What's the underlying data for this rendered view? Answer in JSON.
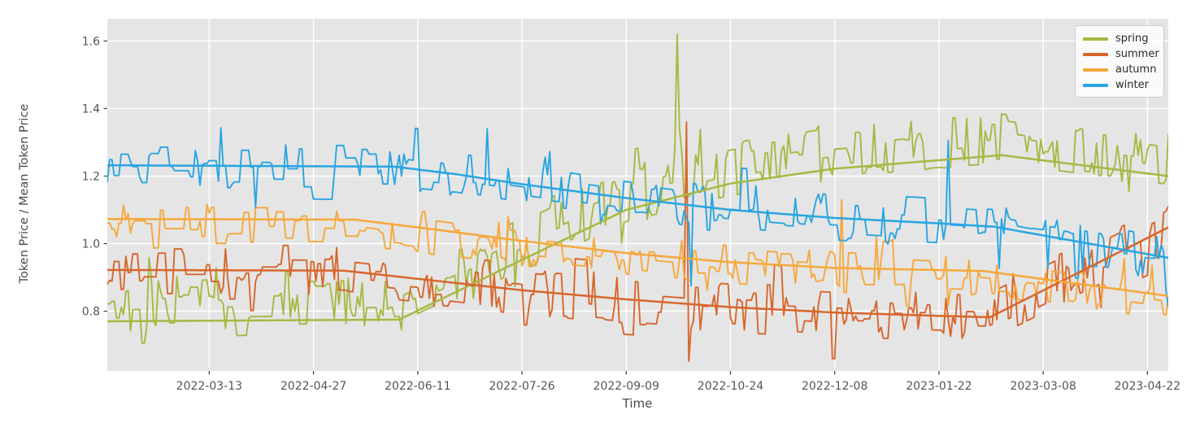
{
  "chart_data": {
    "type": "line",
    "title": "",
    "xlabel": "Time",
    "ylabel": "Token Price / Mean Token Price",
    "x_range": [
      "2022-01-28",
      "2023-05-01"
    ],
    "y_range": [
      0.623,
      1.666
    ],
    "x_ticks": [
      "2022-03-13",
      "2022-04-27",
      "2022-06-11",
      "2022-07-26",
      "2022-09-09",
      "2022-10-24",
      "2022-12-08",
      "2023-01-22",
      "2023-03-08",
      "2023-04-22"
    ],
    "y_ticks": [
      "0.8",
      "1.0",
      "1.2",
      "1.4",
      "1.6"
    ],
    "grid": true,
    "plot_bg": "#e5e5e5",
    "grid_color": "#ffffff",
    "tick_color": "#555555",
    "tick_mark_color": "#4a4a4a",
    "label_color": "#4a4a4a",
    "legend": {
      "position": "top-right"
    },
    "sampling": "daily",
    "series": [
      {
        "name": "spring",
        "color": "#a7b843",
        "trend": [
          [
            "2022-01-28",
            0.77
          ],
          [
            "2022-06-03",
            0.775
          ],
          [
            "2022-07-26",
            0.952
          ],
          [
            "2022-09-09",
            1.1
          ],
          [
            "2022-10-24",
            1.178
          ],
          [
            "2022-12-08",
            1.222
          ],
          [
            "2023-01-22",
            1.247
          ],
          [
            "2023-02-18",
            1.262
          ],
          [
            "2023-05-01",
            1.2
          ]
        ],
        "noise": {
          "seed": 101,
          "amp": 0.082,
          "bias": 0.045,
          "change_prob": 0.5,
          "big_prob": 0.16,
          "big_mult": 1.9
        },
        "spikes": [
          [
            "2022-09-30",
            1.28
          ],
          [
            "2022-10-01",
            1.62
          ],
          [
            "2022-10-02",
            1.34
          ],
          [
            "2022-10-03",
            1.27
          ]
        ]
      },
      {
        "name": "summer",
        "color": "#d8662b",
        "trend": [
          [
            "2022-01-28",
            0.922
          ],
          [
            "2022-05-10",
            0.92
          ],
          [
            "2022-06-12",
            0.895
          ],
          [
            "2022-07-26",
            0.862
          ],
          [
            "2022-09-09",
            0.835
          ],
          [
            "2022-10-24",
            0.812
          ],
          [
            "2022-12-08",
            0.796
          ],
          [
            "2023-01-22",
            0.786
          ],
          [
            "2023-02-13",
            0.782
          ],
          [
            "2023-05-01",
            1.048
          ]
        ],
        "noise": {
          "seed": 202,
          "amp": 0.075,
          "bias": 0.0,
          "change_prob": 0.5,
          "big_prob": 0.16,
          "big_mult": 1.9
        },
        "spikes": [
          [
            "2022-10-05",
            1.36
          ],
          [
            "2022-10-06",
            0.652
          ],
          [
            "2022-10-07",
            0.75
          ],
          [
            "2023-05-01",
            1.11
          ]
        ]
      },
      {
        "name": "autumn",
        "color": "#f6a83b",
        "trend": [
          [
            "2022-01-28",
            1.073
          ],
          [
            "2022-05-15",
            1.071
          ],
          [
            "2022-06-18",
            1.042
          ],
          [
            "2022-07-26",
            1.008
          ],
          [
            "2022-09-09",
            0.972
          ],
          [
            "2022-10-24",
            0.945
          ],
          [
            "2022-12-08",
            0.928
          ],
          [
            "2023-02-10",
            0.919
          ],
          [
            "2023-05-01",
            0.845
          ]
        ],
        "noise": {
          "seed": 303,
          "amp": 0.062,
          "bias": -0.012,
          "change_prob": 0.5,
          "big_prob": 0.15,
          "big_mult": 1.8
        },
        "spikes": [
          [
            "2022-12-11",
            1.13
          ],
          [
            "2023-05-01",
            0.84
          ]
        ]
      },
      {
        "name": "winter",
        "color": "#28a5e2",
        "trend": [
          [
            "2022-01-28",
            1.232
          ],
          [
            "2022-06-01",
            1.228
          ],
          [
            "2022-06-28",
            1.205
          ],
          [
            "2022-07-26",
            1.176
          ],
          [
            "2022-09-09",
            1.135
          ],
          [
            "2022-10-24",
            1.1
          ],
          [
            "2022-12-08",
            1.076
          ],
          [
            "2023-01-22",
            1.06
          ],
          [
            "2023-02-15",
            1.05
          ],
          [
            "2023-05-01",
            0.958
          ]
        ],
        "noise": {
          "seed": 404,
          "amp": 0.07,
          "bias": 0.0,
          "change_prob": 0.5,
          "big_prob": 0.16,
          "big_mult": 1.8
        },
        "spikes": [
          [
            "2022-07-11",
            1.34
          ],
          [
            "2022-10-07",
            0.875
          ],
          [
            "2023-01-26",
            1.305
          ],
          [
            "2023-04-30",
            0.86
          ],
          [
            "2023-05-01",
            0.815
          ]
        ]
      }
    ]
  }
}
